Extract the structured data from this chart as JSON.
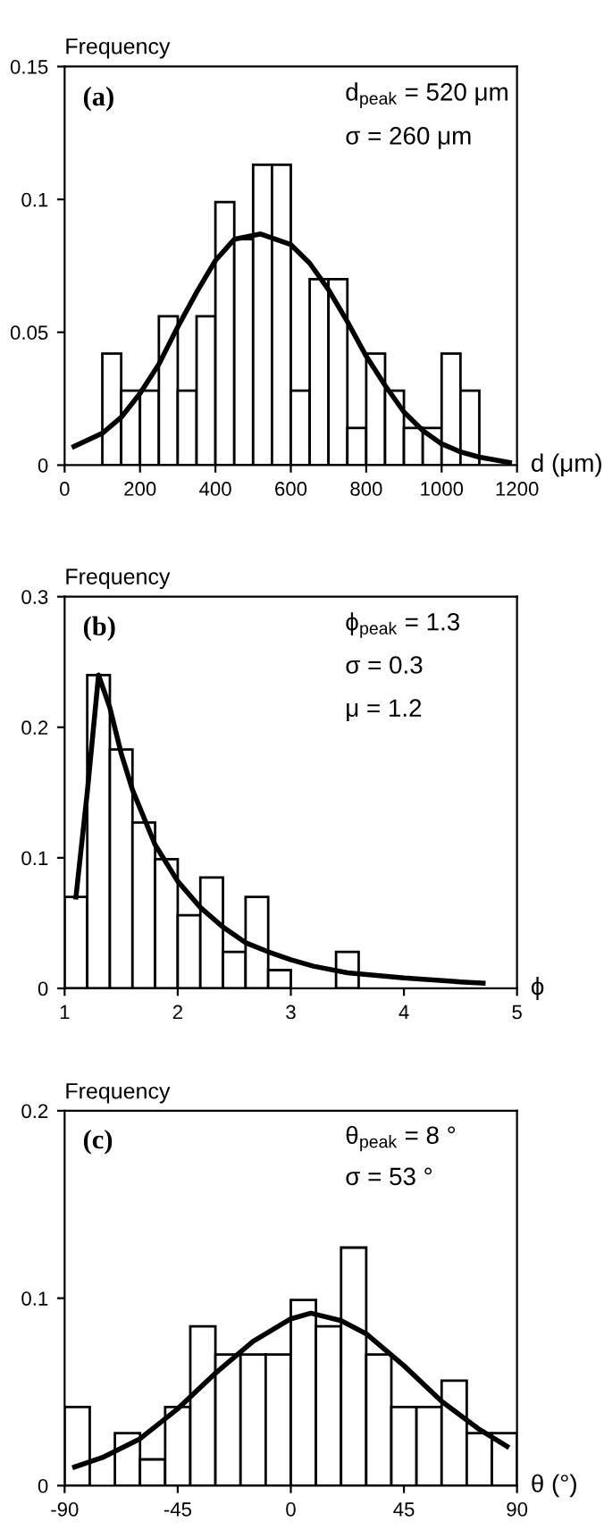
{
  "chart_data": [
    {
      "type": "histogram",
      "color": "#ffffff",
      "ylabel": "Frequency",
      "xlabel": "d (μm)",
      "annotations": [
        "(a)",
        "d$_{peak}$ = 520 μm",
        "σ = 260 μm"
      ],
      "bins": [
        0,
        50,
        100,
        150,
        200,
        250,
        300,
        350,
        400,
        450,
        500,
        550,
        600,
        650,
        700,
        750,
        800,
        850,
        900,
        950,
        1000,
        1050,
        1100,
        1150,
        1200
      ],
      "values": [
        0,
        0,
        0.042,
        0.028,
        0.028,
        0.056,
        0.028,
        0.056,
        0.099,
        0.085,
        0.113,
        0.113,
        0.028,
        0.07,
        0.07,
        0.014,
        0.042,
        0.028,
        0.014,
        0.014,
        0.042,
        0.028,
        0,
        0
      ],
      "series": [
        {
          "type": "line",
          "color": "#000000",
          "x": [
            25,
            100,
            150,
            200,
            250,
            300,
            350,
            400,
            450,
            520,
            600,
            650,
            700,
            750,
            800,
            850,
            900,
            950,
            1000,
            1050,
            1100,
            1180
          ],
          "values": [
            0.007,
            0.012,
            0.018,
            0.027,
            0.038,
            0.052,
            0.065,
            0.077,
            0.085,
            0.087,
            0.083,
            0.076,
            0.066,
            0.054,
            0.041,
            0.03,
            0.02,
            0.013,
            0.008,
            0.005,
            0.003,
            0.001
          ]
        }
      ],
      "xlim": [
        0,
        1200
      ],
      "xticks": [
        0,
        200,
        400,
        600,
        800,
        1000,
        1200
      ],
      "ylim": [
        0,
        0.15
      ],
      "yticks": [
        0,
        0.05,
        0.1,
        0.15
      ]
    },
    {
      "type": "histogram",
      "color": "#ffffff",
      "ylabel": "Frequency",
      "xlabel": "ϕ",
      "annotations": [
        "(b)",
        "ϕ$_{peak}$ = 1.3",
        "σ = 0.3",
        "μ = 1.2"
      ],
      "bins": [
        1,
        1.2,
        1.4,
        1.6,
        1.8,
        2,
        2.2,
        2.4,
        2.6,
        2.8,
        3,
        3.2,
        3.4,
        3.6
      ],
      "values": [
        0.07,
        0.24,
        0.183,
        0.127,
        0.099,
        0.056,
        0.085,
        0.028,
        0.07,
        0.014,
        0,
        0,
        0.028
      ],
      "series": [
        {
          "type": "line",
          "color": "#000000",
          "x": [
            1.1,
            1.2,
            1.3,
            1.4,
            1.5,
            1.6,
            1.8,
            2,
            2.2,
            2.4,
            2.6,
            2.8,
            3,
            3.2,
            3.5,
            4,
            4.5,
            4.7
          ],
          "values": [
            0.07,
            0.15,
            0.24,
            0.215,
            0.18,
            0.152,
            0.11,
            0.082,
            0.062,
            0.047,
            0.035,
            0.028,
            0.022,
            0.017,
            0.012,
            0.008,
            0.005,
            0.004
          ]
        }
      ],
      "xlim": [
        1,
        5
      ],
      "xticks": [
        1,
        2,
        3,
        4,
        5
      ],
      "ylim": [
        0,
        0.3
      ],
      "yticks": [
        0,
        0.1,
        0.2,
        0.3
      ]
    },
    {
      "type": "histogram",
      "color": "#ffffff",
      "ylabel": "Frequency",
      "xlabel": "θ (°)",
      "annotations": [
        "(c)",
        "θ$_{peak}$ = 8 °",
        "σ = 53 °"
      ],
      "bins": [
        -90,
        -80,
        -70,
        -60,
        -50,
        -40,
        -30,
        -20,
        -10,
        0,
        10,
        20,
        30,
        40,
        50,
        60,
        70,
        80,
        90
      ],
      "values": [
        0.042,
        0,
        0.028,
        0.014,
        0.042,
        0.085,
        0.07,
        0.07,
        0.07,
        0.099,
        0.085,
        0.127,
        0.07,
        0.042,
        0.042,
        0.056,
        0.028,
        0.028
      ],
      "series": [
        {
          "type": "line",
          "color": "#000000",
          "x": [
            -86,
            -75,
            -60,
            -45,
            -30,
            -15,
            0,
            8,
            20,
            30,
            45,
            60,
            75,
            86
          ],
          "values": [
            0.01,
            0.015,
            0.025,
            0.041,
            0.06,
            0.077,
            0.089,
            0.092,
            0.088,
            0.081,
            0.064,
            0.045,
            0.03,
            0.021
          ]
        }
      ],
      "xlim": [
        -90,
        90
      ],
      "xticks": [
        -90,
        -45,
        0,
        45,
        90
      ],
      "ylim": [
        0,
        0.2
      ],
      "yticks": [
        0,
        0.1,
        0.2
      ]
    }
  ]
}
